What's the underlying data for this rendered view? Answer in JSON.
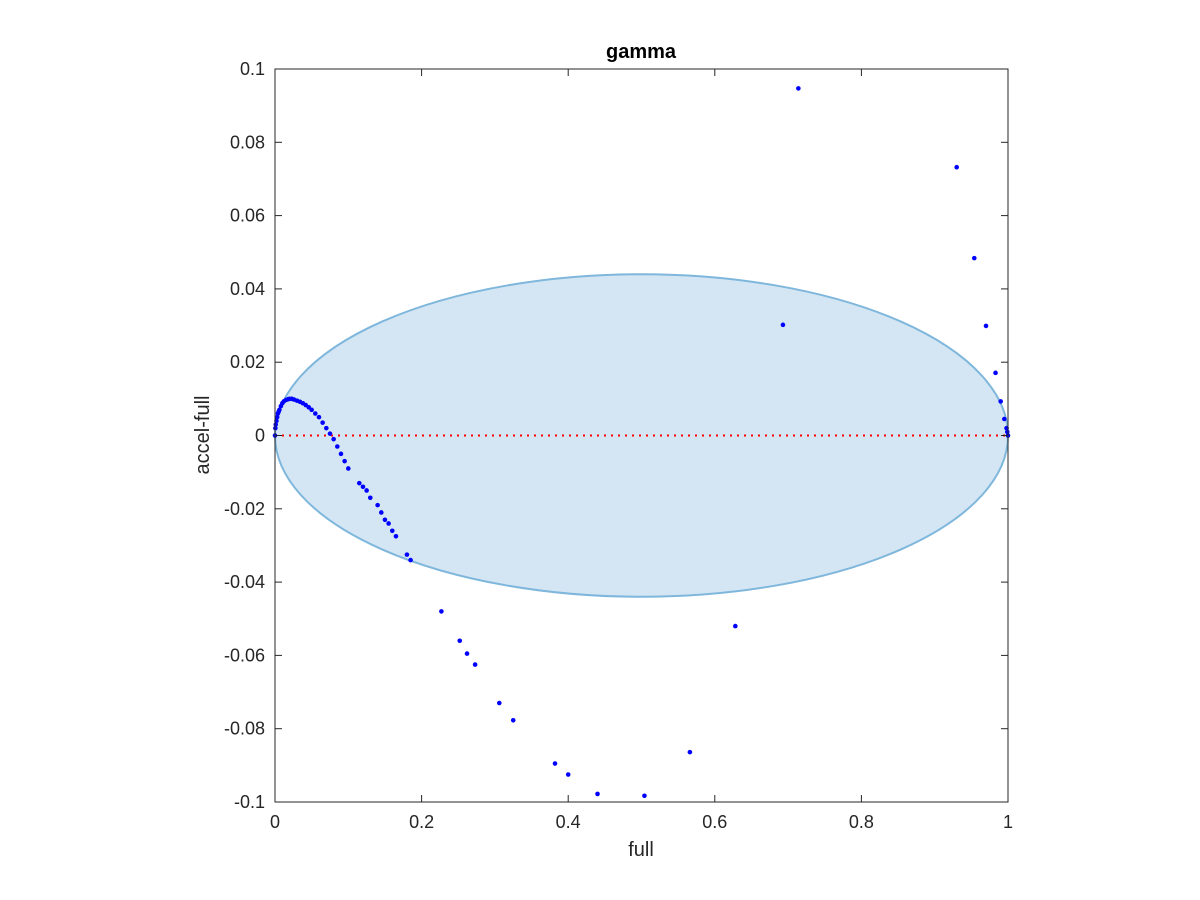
{
  "chart_data": {
    "type": "scatter",
    "title": "gamma",
    "xlabel": "full",
    "ylabel": "accel-full",
    "xlim": [
      0,
      1
    ],
    "ylim": [
      -0.1,
      0.1
    ],
    "xticks": [
      "0",
      "0.2",
      "0.4",
      "0.6",
      "0.8",
      "1"
    ],
    "yticks": [
      "-0.1",
      "-0.08",
      "-0.06",
      "-0.04",
      "-0.02",
      "0",
      "0.02",
      "0.04",
      "0.06",
      "0.08",
      "0.1"
    ],
    "grid": false,
    "reference_line": {
      "y": 0,
      "color": "#ff0000",
      "style": "dotted"
    },
    "ellipse": {
      "center": [
        0.5,
        0
      ],
      "semi_axes": [
        0.5,
        0.044
      ],
      "fill": "#d4e6f4",
      "stroke": "#7fb7dc"
    },
    "series": [
      {
        "color": "#0000ff",
        "points": [
          [
            0.0,
            0.0
          ],
          [
            0.0005,
            0.002
          ],
          [
            0.001,
            0.003
          ],
          [
            0.002,
            0.004
          ],
          [
            0.003,
            0.005
          ],
          [
            0.004,
            0.006
          ],
          [
            0.005,
            0.0065
          ],
          [
            0.006,
            0.007
          ],
          [
            0.008,
            0.008
          ],
          [
            0.01,
            0.0088
          ],
          [
            0.012,
            0.0093
          ],
          [
            0.015,
            0.0097
          ],
          [
            0.018,
            0.0099
          ],
          [
            0.02,
            0.01
          ],
          [
            0.023,
            0.01
          ],
          [
            0.026,
            0.0098
          ],
          [
            0.03,
            0.0095
          ],
          [
            0.034,
            0.0092
          ],
          [
            0.038,
            0.0088
          ],
          [
            0.042,
            0.0083
          ],
          [
            0.046,
            0.0077
          ],
          [
            0.05,
            0.007
          ],
          [
            0.055,
            0.006
          ],
          [
            0.06,
            0.005
          ],
          [
            0.065,
            0.0035
          ],
          [
            0.07,
            0.002
          ],
          [
            0.075,
            0.0005
          ],
          [
            0.08,
            -0.001
          ],
          [
            0.085,
            -0.003
          ],
          [
            0.09,
            -0.005
          ],
          [
            0.095,
            -0.007
          ],
          [
            0.1,
            -0.009
          ],
          [
            0.115,
            -0.013
          ],
          [
            0.12,
            -0.014
          ],
          [
            0.125,
            -0.015
          ],
          [
            0.13,
            -0.017
          ],
          [
            0.14,
            -0.019
          ],
          [
            0.145,
            -0.021
          ],
          [
            0.15,
            -0.023
          ],
          [
            0.155,
            -0.024
          ],
          [
            0.16,
            -0.026
          ],
          [
            0.165,
            -0.0275
          ],
          [
            0.18,
            -0.0325
          ],
          [
            0.185,
            -0.034
          ],
          [
            0.227,
            -0.048
          ],
          [
            0.252,
            -0.056
          ],
          [
            0.262,
            -0.0595
          ],
          [
            0.273,
            -0.0625
          ],
          [
            0.306,
            -0.073
          ],
          [
            0.325,
            -0.0777
          ],
          [
            0.382,
            -0.0895
          ],
          [
            0.4,
            -0.0925
          ],
          [
            0.44,
            -0.0978
          ],
          [
            0.504,
            -0.0983
          ],
          [
            0.566,
            -0.0864
          ],
          [
            0.628,
            -0.052
          ],
          [
            0.693,
            0.0302
          ],
          [
            0.714,
            0.0947
          ],
          [
            0.93,
            0.0732
          ],
          [
            0.954,
            0.0484
          ],
          [
            0.97,
            0.0299
          ],
          [
            0.983,
            0.0171
          ],
          [
            0.99,
            0.0093
          ],
          [
            0.995,
            0.0045
          ],
          [
            0.998,
            0.002
          ],
          [
            0.999,
            0.001
          ],
          [
            1.0,
            0.0
          ]
        ]
      }
    ]
  }
}
